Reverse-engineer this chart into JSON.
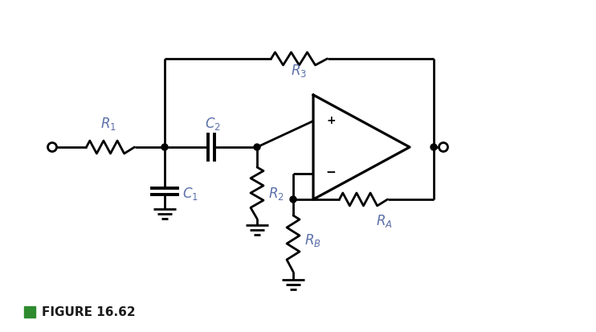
{
  "background_color": "#ffffff",
  "line_color": "#000000",
  "label_color": "#5b6fa8",
  "figure_label": "FIGURE 16.62",
  "figure_label_color": "#1a1a1a",
  "figure_square_color": "#2e8b2e",
  "lw": 2.0
}
